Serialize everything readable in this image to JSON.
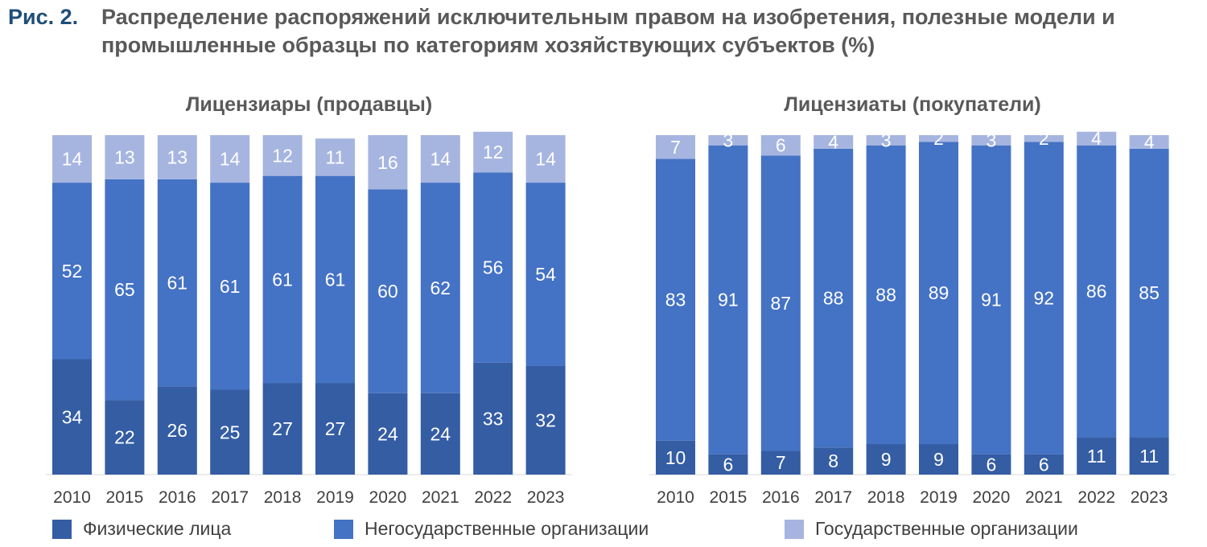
{
  "figure": {
    "number": "Рис. 2.",
    "title": "Распределение распоряжений исключительным правом на изобретения, полезные модели и промышленные образцы по категориям хозяйствующих субъектов (%)"
  },
  "colors": {
    "individuals": "#345DA3",
    "nongov": "#4472C4",
    "gov": "#A6B5E0"
  },
  "chart_data": [
    {
      "type": "bar",
      "stacked": true,
      "title": "Лицензиары (продавцы)",
      "categories": [
        "2010",
        "2015",
        "2016",
        "2017",
        "2018",
        "2019",
        "2020",
        "2021",
        "2022",
        "2023"
      ],
      "series": [
        {
          "name": "Физические лица",
          "values": [
            34,
            22,
            26,
            25,
            27,
            27,
            24,
            24,
            33,
            32
          ]
        },
        {
          "name": "Негосударственные организации",
          "values": [
            52,
            65,
            61,
            61,
            61,
            61,
            60,
            62,
            56,
            54
          ]
        },
        {
          "name": "Государственные организации",
          "values": [
            14,
            13,
            13,
            14,
            12,
            11,
            16,
            14,
            12,
            14
          ]
        }
      ],
      "ylim": [
        0,
        100
      ]
    },
    {
      "type": "bar",
      "stacked": true,
      "title": "Лицензиаты (покупатели)",
      "categories": [
        "2010",
        "2015",
        "2016",
        "2017",
        "2018",
        "2019",
        "2020",
        "2021",
        "2022",
        "2023"
      ],
      "series": [
        {
          "name": "Физические лица",
          "values": [
            10,
            6,
            7,
            8,
            9,
            9,
            6,
            6,
            11,
            11
          ]
        },
        {
          "name": "Негосударственные организации",
          "values": [
            83,
            91,
            87,
            88,
            88,
            89,
            91,
            92,
            86,
            85
          ]
        },
        {
          "name": "Государственные организации",
          "values": [
            7,
            3,
            6,
            4,
            3,
            2,
            3,
            2,
            4,
            4
          ]
        }
      ],
      "ylim": [
        0,
        100
      ]
    }
  ],
  "legend": [
    "Физические лица",
    "Негосударственные организации",
    "Государственные организации"
  ]
}
